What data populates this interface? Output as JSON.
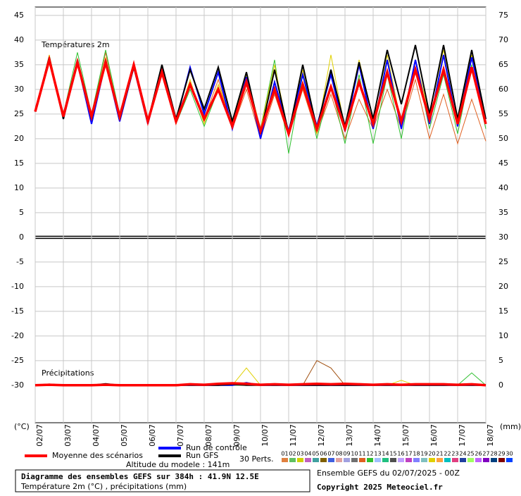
{
  "chart_data": {
    "type": "line",
    "title": "Diagramme des ensembles GEFS sur 384h : 41.9N 12.5E",
    "subtitle": "Température 2m (°C) , précipitations (mm)",
    "altitude": "Altitude du modele : 141m",
    "run_info": "Ensemble GEFS du 02/07/2025 - 00Z",
    "copyright": "Copyright 2025 Meteociel.fr",
    "temperature_label": "Températures 2m",
    "precipitation_label": "Précipitations",
    "y_unit": "(°C)",
    "y2_unit": "(mm)",
    "grid": true,
    "xlim": [
      0,
      384
    ],
    "xticks": [
      {
        "value": 0,
        "label": "02/07"
      },
      {
        "value": 24,
        "label": "03/07"
      },
      {
        "value": 48,
        "label": "04/07"
      },
      {
        "value": 72,
        "label": "05/07"
      },
      {
        "value": 96,
        "label": "06/07"
      },
      {
        "value": 120,
        "label": "07/07"
      },
      {
        "value": 144,
        "label": "08/07"
      },
      {
        "value": 168,
        "label": "09/07"
      },
      {
        "value": 192,
        "label": "10/07"
      },
      {
        "value": 216,
        "label": "11/07"
      },
      {
        "value": 240,
        "label": "12/07"
      },
      {
        "value": 264,
        "label": "13/07"
      },
      {
        "value": 288,
        "label": "14/07"
      },
      {
        "value": 312,
        "label": "15/07"
      },
      {
        "value": 336,
        "label": "16/07"
      },
      {
        "value": 360,
        "label": "17/07"
      },
      {
        "value": 384,
        "label": "18/07"
      }
    ],
    "ylim": [
      -37.6,
      46.7
    ],
    "yticks": [
      -30,
      -25,
      -20,
      -15,
      -10,
      -5,
      0,
      5,
      10,
      15,
      20,
      25,
      30,
      35,
      40,
      45
    ],
    "y2lim": [
      -7.6,
      76.7
    ],
    "y2ticks": [
      0,
      5,
      10,
      15,
      20,
      25,
      30,
      35,
      40,
      45,
      50,
      55,
      60,
      65,
      70,
      75
    ],
    "x": [
      0,
      12,
      24,
      36,
      48,
      60,
      72,
      84,
      96,
      108,
      120,
      132,
      144,
      156,
      168,
      180,
      192,
      204,
      216,
      228,
      240,
      252,
      264,
      276,
      288,
      300,
      312,
      324,
      336,
      348,
      360,
      372,
      384
    ],
    "series": [
      {
        "name": "Moyenne des scénarios",
        "color": "#ff0000",
        "values": [
          25.5,
          36,
          24.5,
          35.5,
          24.5,
          35.5,
          24.5,
          35,
          23.5,
          33.5,
          23.5,
          31,
          24,
          30,
          22.5,
          31.5,
          21.5,
          30,
          21,
          31,
          22,
          30.5,
          22,
          31.5,
          23,
          33.5,
          23.5,
          34,
          24,
          34,
          23,
          34.5,
          23
        ]
      },
      {
        "name": "Run de contrôle",
        "color": "#0000ff",
        "values": [
          25.5,
          36.5,
          24,
          35.5,
          23,
          35.5,
          23.5,
          34.5,
          23,
          34,
          23.5,
          34.5,
          25,
          33.5,
          22,
          32.5,
          20,
          31.5,
          21.5,
          33,
          22.5,
          33,
          21.5,
          35,
          22,
          36,
          22,
          36,
          23,
          37,
          22.5,
          36.5,
          24
        ]
      },
      {
        "name": "Run GFS",
        "color": "#000000",
        "values": [
          25.5,
          36.5,
          24,
          36,
          24,
          36,
          24,
          34.5,
          23.5,
          35,
          24,
          34,
          26,
          34.5,
          23.5,
          33.5,
          21,
          34,
          21,
          35,
          22,
          34,
          22.5,
          35.5,
          24,
          38,
          27,
          39,
          25,
          39,
          24,
          38,
          24
        ]
      },
      {
        "name": "12",
        "color": "#e06020",
        "values": [
          25.5,
          35.5,
          24.5,
          36,
          24.5,
          37.5,
          24,
          35.5,
          23,
          33.5,
          24,
          31,
          24,
          32,
          22,
          30,
          20,
          29,
          20.5,
          30,
          21,
          29,
          20,
          28,
          22,
          30,
          22,
          32,
          20,
          29,
          19,
          28,
          19.5
        ]
      },
      {
        "name": "14",
        "color": "#30c030",
        "values": [
          25.5,
          36.5,
          25,
          37.5,
          25,
          38,
          25,
          35,
          24,
          34,
          23,
          30,
          22.5,
          30,
          22,
          33,
          22,
          36,
          17,
          33,
          20,
          31,
          19,
          33,
          19,
          33,
          20,
          36,
          22,
          33,
          21,
          35,
          22
        ]
      },
      {
        "name": "20",
        "color": "#e0d000",
        "values": [
          25.5,
          37,
          24.5,
          36,
          24,
          36.5,
          23.5,
          35,
          23,
          34,
          23,
          32,
          23,
          31,
          23,
          33,
          22,
          35,
          21,
          34,
          21,
          37,
          22,
          36,
          24,
          37,
          23,
          36,
          25,
          38,
          24,
          37,
          23
        ]
      },
      {
        "name": "Moyenne des scénarios",
        "color": "#ff0000",
        "axis": "y2",
        "values": [
          0,
          0.1,
          0,
          0,
          0,
          0.1,
          0,
          0,
          0,
          0,
          0,
          0.2,
          0.1,
          0.3,
          0.4,
          0.3,
          0.1,
          0.2,
          0.1,
          0.2,
          0.3,
          0.2,
          0.3,
          0.2,
          0.1,
          0.2,
          0.1,
          0.2,
          0.2,
          0.2,
          0.1,
          0.2,
          0
        ]
      },
      {
        "name": "Run de contrôle",
        "color": "#0000ff",
        "axis": "y2",
        "values": [
          0,
          0,
          0,
          0.1,
          0,
          0,
          0,
          0,
          0,
          0,
          0,
          0,
          0,
          0,
          0,
          0.5,
          0,
          0,
          0,
          0,
          0,
          0,
          0,
          0,
          0,
          0,
          0,
          0,
          0,
          0,
          0,
          0,
          0
        ]
      },
      {
        "name": "Run GFS",
        "color": "#000000",
        "axis": "y2",
        "values": [
          0,
          0.2,
          0,
          0,
          0,
          0.3,
          0,
          0,
          0,
          0,
          0,
          0,
          0,
          0,
          0.2,
          0,
          0,
          0,
          0,
          0,
          0,
          0,
          0,
          0,
          0,
          0,
          0,
          0,
          0,
          0,
          0,
          0,
          0
        ]
      },
      {
        "name": "12",
        "color": "#a05010",
        "axis": "y2",
        "values": [
          0,
          0,
          0,
          0,
          0,
          0,
          0,
          0,
          0,
          0,
          0,
          0,
          0,
          0,
          0,
          0,
          0,
          0,
          0,
          0,
          5,
          3.5,
          0,
          0,
          0,
          0,
          0,
          0,
          0,
          0,
          0,
          0,
          0
        ]
      },
      {
        "name": "14",
        "color": "#30c030",
        "axis": "y2",
        "values": [
          0,
          0,
          0,
          0,
          0,
          0,
          0,
          0,
          0,
          0,
          0,
          0,
          0,
          0,
          0,
          0,
          0,
          0,
          0,
          0,
          0,
          0,
          0,
          0,
          0,
          0,
          0,
          0,
          0,
          0,
          0,
          2.5,
          0
        ]
      },
      {
        "name": "20",
        "color": "#e0d000",
        "axis": "y2",
        "values": [
          0,
          0,
          0,
          0,
          0,
          0,
          0,
          0,
          0,
          0,
          0,
          0,
          0,
          0,
          0,
          3.5,
          0,
          0,
          0,
          0,
          0,
          0,
          0,
          0,
          0,
          0,
          1,
          0,
          0,
          0,
          0,
          0,
          0
        ]
      }
    ],
    "perturbations": {
      "title": "30 Perts.",
      "labels": [
        "01",
        "02",
        "03",
        "04",
        "05",
        "06",
        "07",
        "08",
        "09",
        "10",
        "11",
        "12",
        "13",
        "14",
        "15",
        "16",
        "17",
        "18",
        "19",
        "20",
        "21",
        "22",
        "23",
        "24",
        "25",
        "26",
        "27",
        "28",
        "29",
        "30"
      ],
      "colors": [
        "#e08040",
        "#60c060",
        "#d0d000",
        "#c060c0",
        "#40a0a0",
        "#806000",
        "#4060e0",
        "#e0a0a0",
        "#a0a0e0",
        "#707070",
        "#e06020",
        "#30c030",
        "#a0c0ff",
        "#20c080",
        "#505050",
        "#c0a0ff",
        "#c040c0",
        "#8080ff",
        "#80c0c0",
        "#e0d000",
        "#ffa040",
        "#00c0c0",
        "#e04080",
        "#2040a0",
        "#a0ff60",
        "#c060ff",
        "#8000c0",
        "#004080",
        "#800000",
        "#0040ff"
      ]
    }
  }
}
